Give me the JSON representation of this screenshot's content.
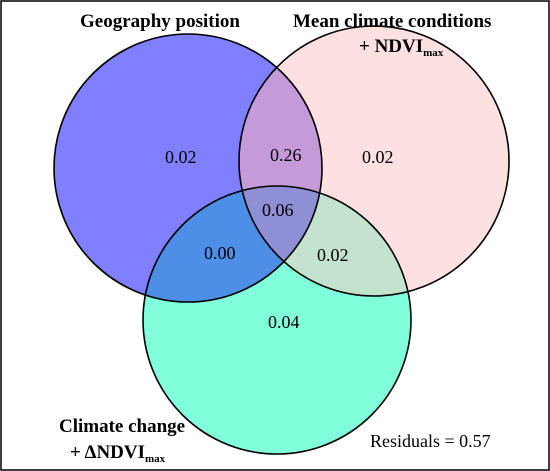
{
  "sets": {
    "geography": {
      "label": "Geography position",
      "color": "#7f7fff"
    },
    "mean_climate": {
      "label_line1": "Mean climate conditions",
      "label_line2_prefix": "+ NDVI",
      "label_line2_sub": "max",
      "color": "#fde1e1"
    },
    "climate_change": {
      "label_line1": "Climate change",
      "label_line2_prefix": "+ ΔNDVI",
      "label_line2_sub": "max",
      "color": "#80ffda"
    }
  },
  "regions": {
    "geography_only": "0.02",
    "geography_mean_climate": "0.26",
    "mean_climate_only": "0.02",
    "all_three": "0.06",
    "geography_climate_change": "0.00",
    "mean_climate_climate_change": "0.02",
    "climate_change_only": "0.04"
  },
  "residuals": "Residuals = 0.57",
  "colors": {
    "border": "#000000",
    "overlap_geo_mean": "#c59ad9",
    "overlap_geo_change": "#4d8fe6",
    "overlap_mean_change": "#c4e3ce",
    "overlap_all": "#8f8fd6"
  }
}
